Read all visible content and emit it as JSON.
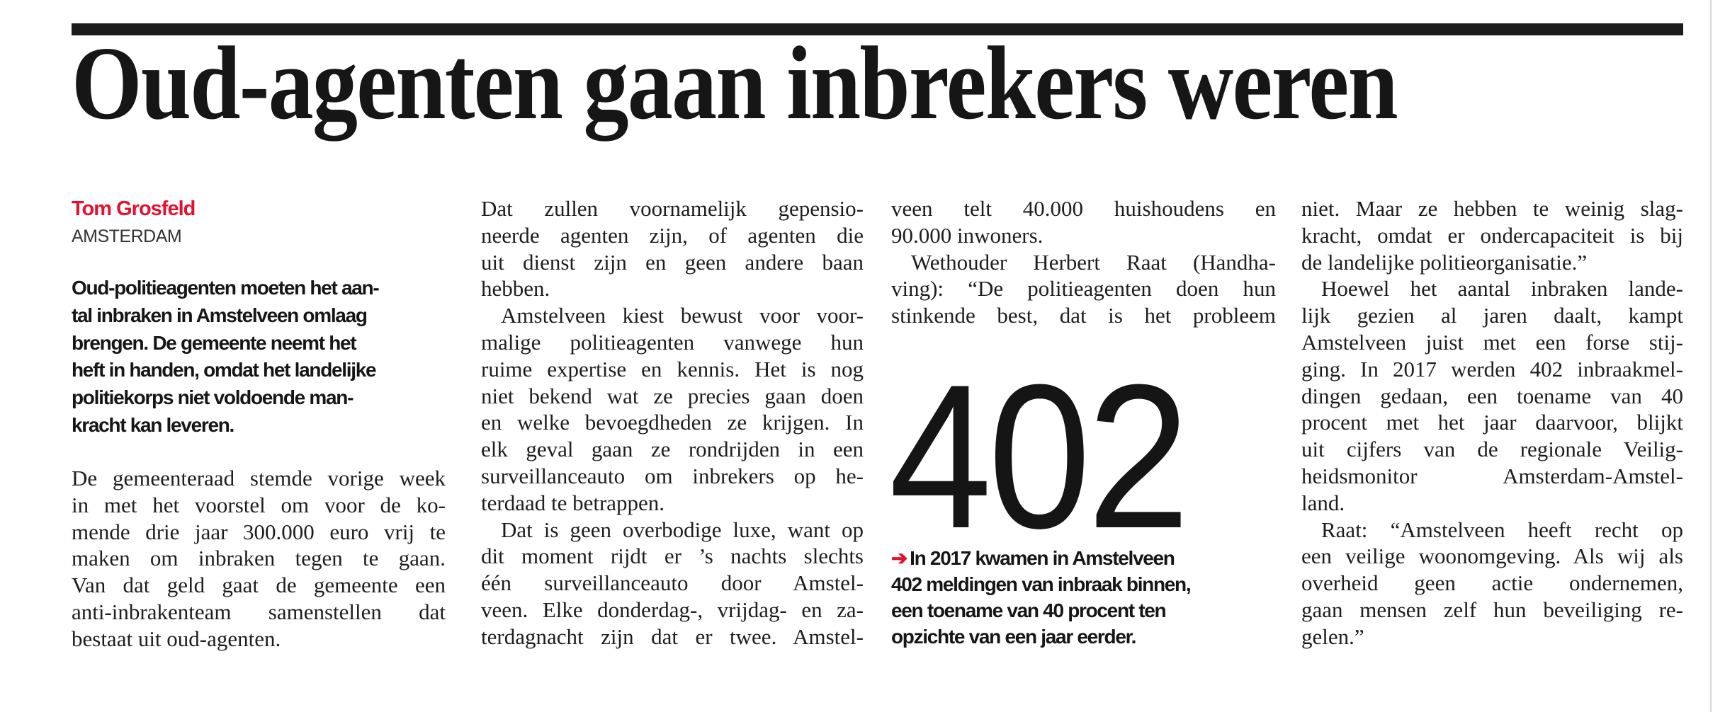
{
  "article": {
    "headline": "Oud-agenten gaan inbrekers weren",
    "author": "Tom Grosfeld",
    "dateline": "AMSTERDAM",
    "accent_color": "#e3112f",
    "lead": [
      "Oud-politieagenten moeten het aan-",
      "tal inbraken in Amstelveen omlaag",
      "brengen. De gemeente neemt het",
      "heft in handen, omdat het landelijke",
      "politiekorps niet voldoende man-",
      "kracht kan leveren."
    ],
    "columns": [
      [
        {
          "indent": false,
          "lines": [
            "De gemeenteraad stemde vorige week",
            "in met het voorstel om voor de ko-",
            "mende drie jaar 300.000 euro vrij te",
            "maken om inbraken tegen te gaan.",
            "Van dat geld gaat de gemeente een",
            "anti-inbrakenteam samenstellen dat",
            "bestaat uit oud-agenten."
          ]
        }
      ],
      [
        {
          "indent": false,
          "lines": [
            "Dat zullen voornamelijk gepensio-",
            "neerde agenten zijn, of agenten die",
            "uit dienst zijn en geen andere baan",
            "hebben."
          ]
        },
        {
          "indent": true,
          "lines": [
            "Amstelveen kiest bewust voor voor-",
            "malige politieagenten vanwege hun",
            "ruime expertise en kennis. Het is nog",
            "niet bekend wat ze precies gaan doen",
            "en welke bevoegdheden ze krijgen. In",
            "elk geval gaan ze rondrijden in een",
            "surveillanceauto om inbrekers op he-",
            "terdaad te betrappen."
          ]
        },
        {
          "indent": true,
          "continues": true,
          "lines": [
            "Dat is geen overbodige luxe, want op",
            "dit moment rijdt er ’s nachts slechts",
            "één surveillanceauto door Amstel-",
            "veen. Elke donderdag-, vrijdag- en za-",
            "terdagnacht zijn dat er twee. Amstel-"
          ]
        }
      ],
      [
        {
          "indent": false,
          "lines": [
            "veen telt 40.000 huishoudens en",
            "90.000 inwoners."
          ]
        },
        {
          "indent": true,
          "continues": true,
          "lines": [
            "Wethouder Herbert Raat (Handha-",
            "ving): “De politieagenten doen hun",
            "stinkende best, dat is het probleem"
          ]
        }
      ],
      [
        {
          "indent": false,
          "lines": [
            "niet. Maar ze hebben te weinig slag-",
            "kracht, omdat er ondercapaciteit is bij",
            "de landelijke politieorganisatie.”"
          ]
        },
        {
          "indent": true,
          "lines": [
            "Hoewel het aantal inbraken lande-",
            "lijk gezien al jaren daalt, kampt",
            "Amstelveen juist met een forse stij-",
            "ging. In 2017 werden 402 inbraakmel-",
            "dingen gedaan, een toename van 40",
            "procent met het jaar daarvoor, blijkt",
            "uit cijfers van de regionale Veilig-",
            "heidsmonitor Amsterdam-Amstel-",
            "land."
          ]
        },
        {
          "indent": true,
          "lines": [
            "Raat: “Amstelveen heeft recht op",
            "een veilige woonomgeving. Als wij als",
            "overheid geen actie ondernemen,",
            "gaan mensen zelf hun beveiliging re-",
            "gelen.”"
          ]
        }
      ]
    ],
    "highlight": {
      "number": "402",
      "arrow_icon": "arrow-right-icon",
      "arrow_glyph": "➔",
      "caption": [
        "In 2017 kwamen in Amstelveen",
        "402 meldingen van inbraak binnen,",
        "een toename van 40 procent ten",
        "opzichte van een jaar eerder."
      ]
    }
  }
}
